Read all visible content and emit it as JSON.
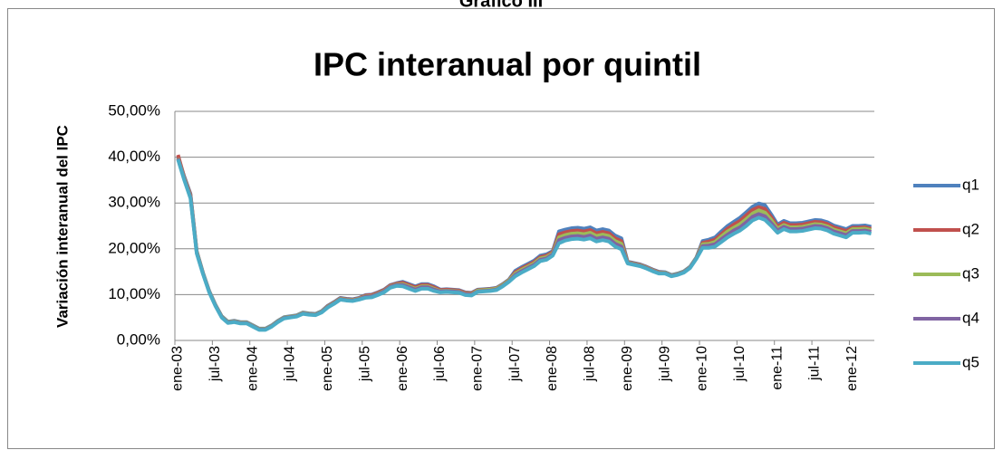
{
  "chart_data": {
    "type": "line",
    "supertitle": "Gráfico III",
    "title": "IPC interanual por quintil",
    "y_label": "Variación interanual del IPC",
    "legend": "right",
    "grid": true,
    "ylim": [
      0,
      50
    ],
    "yticks": [
      {
        "value": 0,
        "label": "0,00%"
      },
      {
        "value": 10,
        "label": "10,00%"
      },
      {
        "value": 20,
        "label": "20,00%"
      },
      {
        "value": 30,
        "label": "30,00%"
      },
      {
        "value": 40,
        "label": "40,00%"
      },
      {
        "value": 50,
        "label": "50,00%"
      }
    ],
    "categories": [
      "ene-03",
      null,
      null,
      null,
      null,
      null,
      "jul-03",
      null,
      null,
      null,
      null,
      null,
      "ene-04",
      null,
      null,
      null,
      null,
      null,
      "jul-04",
      null,
      null,
      null,
      null,
      null,
      "ene-05",
      null,
      null,
      null,
      null,
      null,
      "jul-05",
      null,
      null,
      null,
      null,
      null,
      "ene-06",
      null,
      null,
      null,
      null,
      null,
      "jul-06",
      null,
      null,
      null,
      null,
      null,
      "ene-07",
      null,
      null,
      null,
      null,
      null,
      "jul-07",
      null,
      null,
      null,
      null,
      null,
      "ene-08",
      null,
      null,
      null,
      null,
      null,
      "jul-08",
      null,
      null,
      null,
      null,
      null,
      "ene-09",
      null,
      null,
      null,
      null,
      null,
      "jul-09",
      null,
      null,
      null,
      null,
      null,
      "ene-10",
      null,
      null,
      null,
      null,
      null,
      "jul-10",
      null,
      null,
      null,
      null,
      null,
      "ene-11",
      null,
      null,
      null,
      null,
      null,
      "jul-11",
      null,
      null,
      null,
      null,
      null,
      "ene-12",
      null,
      null,
      null
    ],
    "series": [
      {
        "name": "q1",
        "color": "#4f81bd",
        "values": [
          40.1,
          35.8,
          32,
          19.5,
          14.8,
          10.8,
          7.8,
          5.3,
          4.1,
          4.3,
          4.0,
          4.0,
          3.3,
          2.6,
          2.6,
          3.3,
          4.3,
          5.1,
          5.3,
          5.5,
          6.1,
          5.9,
          5.8,
          6.4,
          7.6,
          8.4,
          9.3,
          9.1,
          9.0,
          9.3,
          9.9,
          10.0,
          10.5,
          11.1,
          12.1,
          12.5,
          12.8,
          12.3,
          11.8,
          12.3,
          12.3,
          11.8,
          11.1,
          11.2,
          11.1,
          11.0,
          10.5,
          10.4,
          11.1,
          11.2,
          11.3,
          11.5,
          12.3,
          13.3,
          15.2,
          16.0,
          16.7,
          17.4,
          18.5,
          18.8,
          19.5,
          23.8,
          24.2,
          24.5,
          24.6,
          24.4,
          24.7,
          24.0,
          24.3,
          24.0,
          22.9,
          22.3,
          17.2,
          16.9,
          16.6,
          16.1,
          15.5,
          15.0,
          14.9,
          14.3,
          14.6,
          15.1,
          16.1,
          18.1,
          21.7,
          22.0,
          22.5,
          23.8,
          25.0,
          25.9,
          26.8,
          28.0,
          29.2,
          29.9,
          29.5,
          27.5,
          25.3,
          26.1,
          25.6,
          25.6,
          25.7,
          26.0,
          26.3,
          26.2,
          25.8,
          25.1,
          24.7,
          24.3,
          25.0,
          25.0,
          25.1,
          24.8
        ]
      },
      {
        "name": "q2",
        "color": "#c0504d",
        "values": [
          40.5,
          35.6,
          31.8,
          19.4,
          14.7,
          10.7,
          7.7,
          5.2,
          4.0,
          4.2,
          3.9,
          3.9,
          3.2,
          2.5,
          2.5,
          3.2,
          4.2,
          5.0,
          5.2,
          5.4,
          6.0,
          5.8,
          5.7,
          6.3,
          7.5,
          8.3,
          9.2,
          9.0,
          8.9,
          9.2,
          9.8,
          9.9,
          10.4,
          11.0,
          12.0,
          12.4,
          12.6,
          12.1,
          11.6,
          12.1,
          12.1,
          11.6,
          11.0,
          11.1,
          11.0,
          10.9,
          10.4,
          10.3,
          11.0,
          11.1,
          11.2,
          11.4,
          12.2,
          13.2,
          14.9,
          15.7,
          16.4,
          17.1,
          18.2,
          18.5,
          19.3,
          23.2,
          23.6,
          23.9,
          24.0,
          23.8,
          24.1,
          23.4,
          23.7,
          23.4,
          22.3,
          21.7,
          17.1,
          16.8,
          16.5,
          16.0,
          15.4,
          14.9,
          14.8,
          14.2,
          14.5,
          15.0,
          16.0,
          18.0,
          21.3,
          21.6,
          22.0,
          23.2,
          24.4,
          25.3,
          26.1,
          27.3,
          28.5,
          29.1,
          28.7,
          26.9,
          24.9,
          25.7,
          25.2,
          25.2,
          25.3,
          25.6,
          25.9,
          25.8,
          25.4,
          24.7,
          24.3,
          23.9,
          24.6,
          24.6,
          24.7,
          24.4
        ]
      },
      {
        "name": "q3",
        "color": "#9bbb59",
        "values": [
          39.8,
          35.4,
          31.5,
          19.3,
          14.7,
          10.7,
          7.7,
          5.2,
          4.0,
          4.2,
          3.9,
          3.9,
          3.2,
          2.5,
          2.5,
          3.2,
          4.2,
          5.0,
          5.2,
          5.4,
          6.0,
          5.8,
          5.7,
          6.3,
          7.4,
          8.2,
          9.1,
          8.9,
          8.8,
          9.1,
          9.6,
          9.7,
          10.2,
          10.8,
          11.8,
          12.2,
          12.3,
          11.8,
          11.3,
          11.8,
          11.8,
          11.3,
          10.8,
          10.9,
          10.8,
          10.7,
          10.2,
          10.1,
          10.9,
          11.0,
          11.1,
          11.3,
          12.1,
          13.1,
          14.6,
          15.4,
          16.1,
          16.8,
          17.9,
          18.2,
          19.0,
          22.5,
          23.0,
          23.3,
          23.4,
          23.2,
          23.5,
          22.8,
          23.1,
          22.8,
          21.7,
          21.1,
          17.0,
          16.7,
          16.4,
          15.9,
          15.3,
          14.8,
          14.8,
          14.2,
          14.5,
          15.0,
          16.0,
          18.0,
          21.0,
          21.1,
          21.5,
          22.7,
          23.8,
          24.6,
          25.4,
          26.5,
          27.7,
          28.4,
          27.9,
          26.3,
          24.4,
          25.2,
          24.7,
          24.7,
          24.8,
          25.1,
          25.4,
          25.3,
          24.9,
          24.2,
          23.8,
          23.4,
          24.3,
          24.3,
          24.4,
          24.1
        ]
      },
      {
        "name": "q4",
        "color": "#8064a2",
        "values": [
          39.7,
          35.2,
          31.3,
          19.1,
          14.6,
          10.6,
          7.6,
          5.1,
          3.9,
          4.1,
          3.8,
          3.8,
          3.1,
          2.4,
          2.4,
          3.1,
          4.1,
          4.9,
          5.1,
          5.3,
          5.9,
          5.7,
          5.6,
          6.2,
          7.3,
          8.1,
          9.0,
          8.8,
          8.7,
          9.0,
          9.5,
          9.6,
          10.1,
          10.7,
          11.7,
          12.1,
          12.1,
          11.6,
          11.1,
          11.6,
          11.6,
          11.1,
          10.7,
          10.8,
          10.7,
          10.6,
          10.1,
          10.0,
          10.7,
          10.8,
          10.9,
          11.1,
          11.9,
          12.9,
          14.3,
          15.1,
          15.8,
          16.5,
          17.6,
          17.9,
          18.8,
          21.9,
          22.4,
          22.7,
          22.8,
          22.6,
          22.9,
          22.2,
          22.5,
          22.2,
          21.1,
          20.5,
          16.9,
          16.6,
          16.3,
          15.8,
          15.2,
          14.7,
          14.7,
          14.1,
          14.4,
          14.9,
          15.9,
          17.9,
          20.6,
          20.7,
          21.0,
          22.1,
          23.1,
          24.0,
          24.7,
          25.8,
          27.0,
          27.6,
          27.1,
          25.6,
          24.0,
          24.8,
          24.3,
          24.3,
          24.4,
          24.7,
          25.0,
          24.9,
          24.5,
          23.8,
          23.4,
          23.0,
          23.9,
          23.9,
          24.0,
          23.7
        ]
      },
      {
        "name": "q5",
        "color": "#4bacc6",
        "values": [
          39.5,
          35,
          31,
          19,
          14.5,
          10.5,
          7.5,
          5,
          3.8,
          4.0,
          3.7,
          3.7,
          3.0,
          2.3,
          2.3,
          3.0,
          4.0,
          4.8,
          5.0,
          5.2,
          5.8,
          5.6,
          5.5,
          6.1,
          7.2,
          8.0,
          8.9,
          8.7,
          8.6,
          8.9,
          9.3,
          9.4,
          9.9,
          10.5,
          11.5,
          11.9,
          11.8,
          11.3,
          10.8,
          11.3,
          11.3,
          10.8,
          10.5,
          10.6,
          10.5,
          10.4,
          9.9,
          9.8,
          10.6,
          10.7,
          10.8,
          11.0,
          11.8,
          12.8,
          14.0,
          14.8,
          15.5,
          16.2,
          17.3,
          17.6,
          18.5,
          21.2,
          21.8,
          22.1,
          22.2,
          22.0,
          22.3,
          21.6,
          21.9,
          21.6,
          20.5,
          19.9,
          16.8,
          16.5,
          16.2,
          15.7,
          15.1,
          14.6,
          14.6,
          14.0,
          14.3,
          14.8,
          15.8,
          17.8,
          20.2,
          20.2,
          20.5,
          21.5,
          22.5,
          23.3,
          24.0,
          25.0,
          26.2,
          26.8,
          26.3,
          25.0,
          23.5,
          24.3,
          23.8,
          23.8,
          23.9,
          24.2,
          24.5,
          24.4,
          24.0,
          23.3,
          22.9,
          22.5,
          23.5,
          23.5,
          23.6,
          23.3
        ]
      }
    ]
  }
}
